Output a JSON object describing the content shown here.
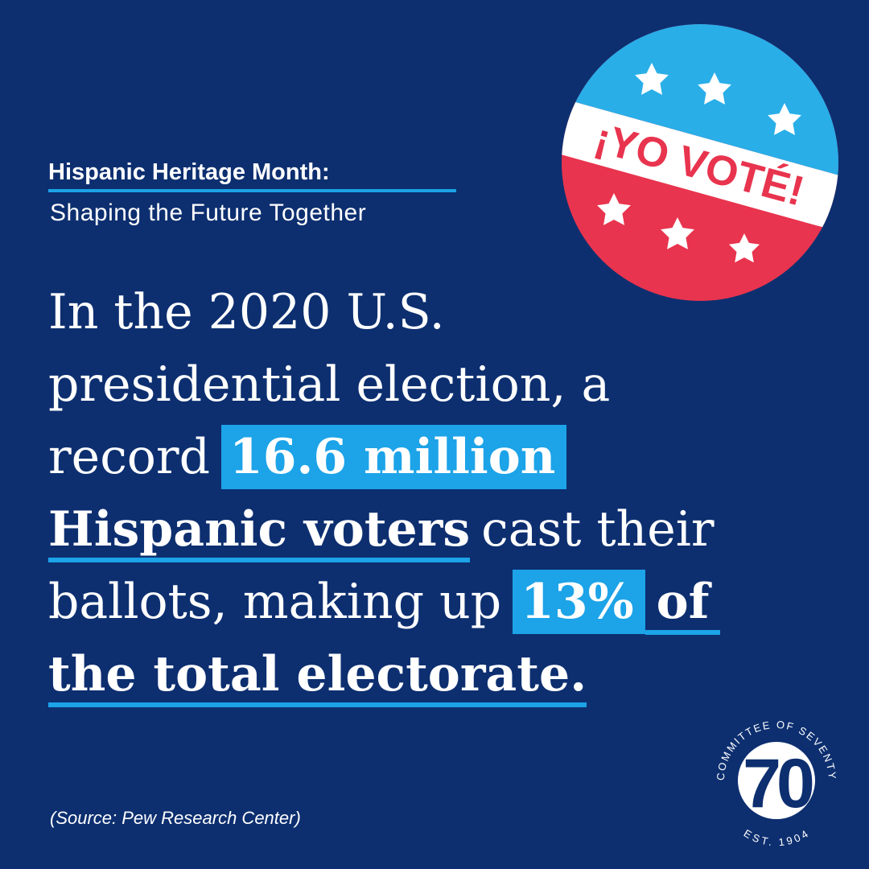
{
  "header": {
    "title": "Hispanic Heritage Month:",
    "subtitle": "Shaping the Future Together"
  },
  "badge": {
    "text": "¡YO VOTÉ!"
  },
  "body": {
    "lines": [
      [
        "In the 2020 U.S."
      ],
      [
        "presidential election, a"
      ],
      [
        "record",
        "16.6 million"
      ],
      [
        "Hispanic voters",
        "cast their"
      ],
      [
        "ballots, making up",
        "13%",
        "of"
      ],
      [
        "the total electorate."
      ]
    ]
  },
  "source": "(Source: Pew Research Center)",
  "logo": {
    "ring": "COMMITTEE OF SEVENTY",
    "number": "70",
    "established": "EST. 1904"
  }
}
